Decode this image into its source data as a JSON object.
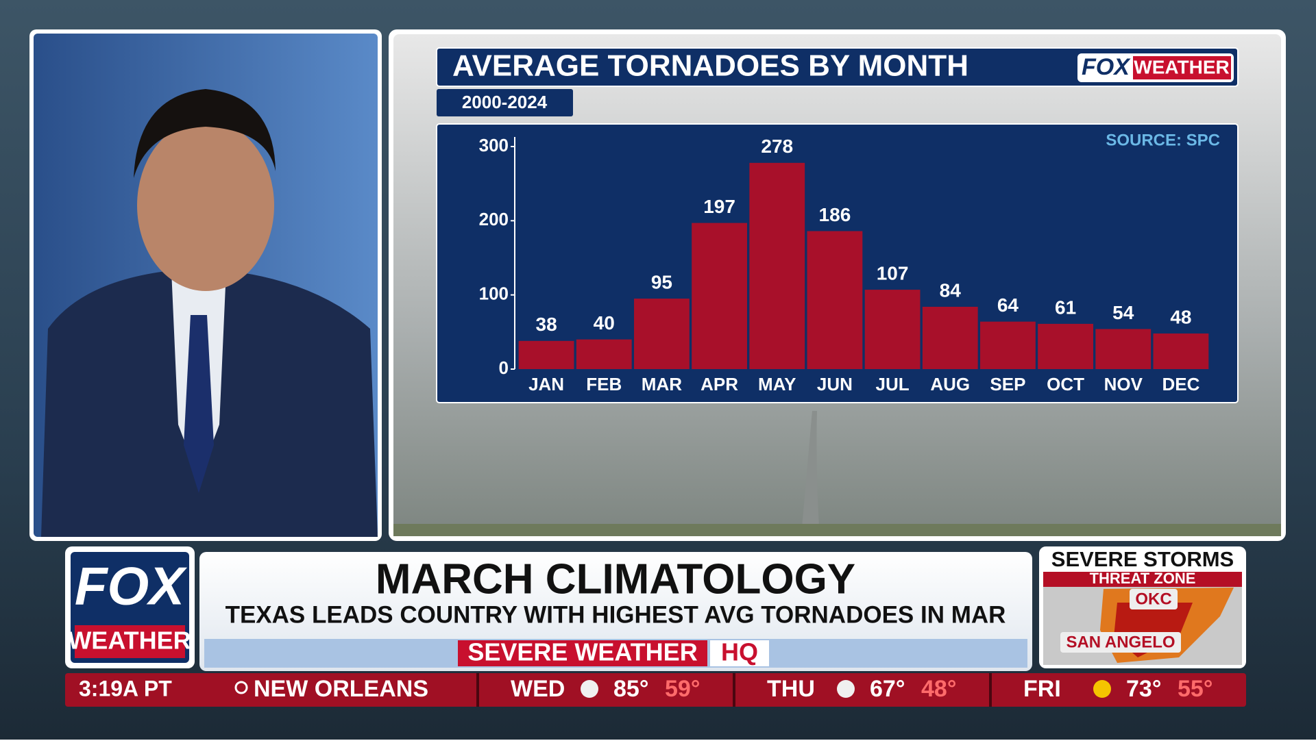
{
  "chart_data": {
    "type": "bar",
    "title": "AVERAGE TORNADOES BY MONTH",
    "subtitle": "2000-2024",
    "source": "SOURCE: SPC",
    "categories": [
      "JAN",
      "FEB",
      "MAR",
      "APR",
      "MAY",
      "JUN",
      "JUL",
      "AUG",
      "SEP",
      "OCT",
      "NOV",
      "DEC"
    ],
    "values": [
      38,
      40,
      95,
      197,
      278,
      186,
      107,
      84,
      64,
      61,
      54,
      48
    ],
    "color": "#a8102a",
    "ylim": [
      0,
      300
    ],
    "yticks": [
      0,
      100,
      200,
      300
    ]
  },
  "logo": {
    "brand": "FOX",
    "sub": "WEATHER"
  },
  "lower_third": {
    "headline": "MARCH CLIMATOLOGY",
    "subheadline": "TEXAS LEADS COUNTRY WITH HIGHEST AVG TORNADOES IN MAR",
    "banner": "SEVERE WEATHER",
    "banner_tag": "HQ"
  },
  "threat_panel": {
    "title": "SEVERE STORMS",
    "subtitle": "THREAT ZONE",
    "cities": [
      "OKC",
      "SAN ANGELO"
    ]
  },
  "ticker": {
    "time": "3:19A PT",
    "location": "NEW ORLEANS",
    "forecast": [
      {
        "day": "WED",
        "high": "85°",
        "low": "59°"
      },
      {
        "day": "THU",
        "high": "67°",
        "low": "48°"
      },
      {
        "day": "FRI",
        "high": "73°",
        "low": "55°"
      }
    ]
  }
}
